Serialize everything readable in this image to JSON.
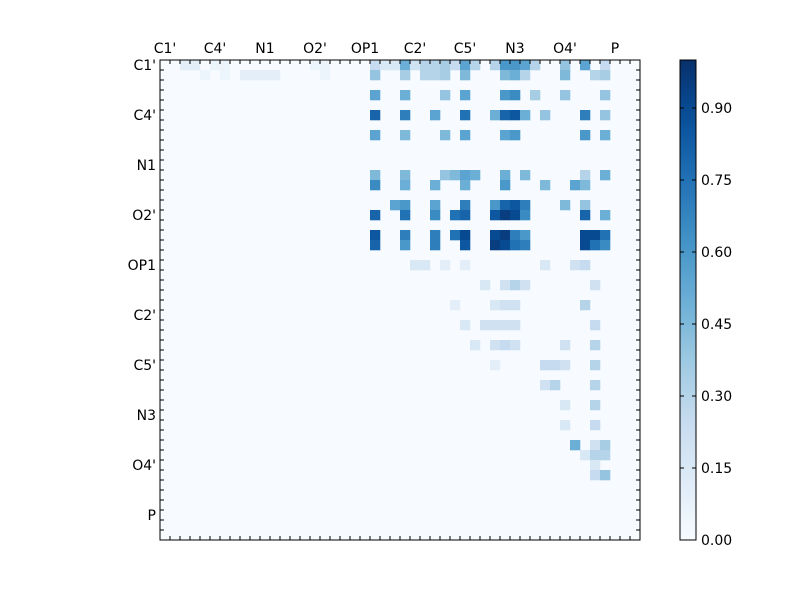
{
  "chart_data": {
    "type": "heatmap",
    "title": "",
    "xlabel": "",
    "ylabel": "",
    "n": 48,
    "tick_labels": [
      "C1'",
      "C4'",
      "N1",
      "O2'",
      "OP1",
      "C2'",
      "C5'",
      "N3",
      "O4'",
      "P"
    ],
    "tick_positions": [
      0,
      5,
      10,
      15,
      20,
      25,
      30,
      35,
      40,
      45
    ],
    "x_axis_position": "top",
    "colormap": "Blues",
    "colorbar": {
      "min": 0.0,
      "max": 1.0,
      "tick_values": [
        0.0,
        0.15,
        0.3,
        0.45,
        0.6,
        0.75,
        0.9
      ],
      "tick_labels": [
        "0.00",
        "0.15",
        "0.30",
        "0.45",
        "0.60",
        "0.75",
        "0.90"
      ]
    },
    "matrix_structure": "upper-triangular",
    "values": [
      {
        "r": 0,
        "c": 2,
        "v": 0.1
      },
      {
        "r": 0,
        "c": 3,
        "v": 0.1
      },
      {
        "r": 0,
        "c": 5,
        "v": 0.05
      },
      {
        "r": 0,
        "c": 6,
        "v": 0.05
      },
      {
        "r": 0,
        "c": 15,
        "v": 0.05
      },
      {
        "r": 0,
        "c": 16,
        "v": 0.05
      },
      {
        "r": 0,
        "c": 21,
        "v": 0.25
      },
      {
        "r": 0,
        "c": 22,
        "v": 0.15
      },
      {
        "r": 0,
        "c": 23,
        "v": 0.15
      },
      {
        "r": 0,
        "c": 24,
        "v": 0.5
      },
      {
        "r": 0,
        "c": 25,
        "v": 0.2
      },
      {
        "r": 0,
        "c": 26,
        "v": 0.3
      },
      {
        "r": 0,
        "c": 27,
        "v": 0.3
      },
      {
        "r": 0,
        "c": 28,
        "v": 0.35
      },
      {
        "r": 0,
        "c": 29,
        "v": 0.25
      },
      {
        "r": 0,
        "c": 30,
        "v": 0.55
      },
      {
        "r": 0,
        "c": 31,
        "v": 0.3
      },
      {
        "r": 0,
        "c": 33,
        "v": 0.3
      },
      {
        "r": 0,
        "c": 34,
        "v": 0.6
      },
      {
        "r": 0,
        "c": 35,
        "v": 0.6
      },
      {
        "r": 0,
        "c": 36,
        "v": 0.55
      },
      {
        "r": 0,
        "c": 37,
        "v": 0.3
      },
      {
        "r": 0,
        "c": 40,
        "v": 0.4
      },
      {
        "r": 0,
        "c": 42,
        "v": 0.55
      },
      {
        "r": 0,
        "c": 44,
        "v": 0.25
      },
      {
        "r": 1,
        "c": 4,
        "v": 0.05
      },
      {
        "r": 1,
        "c": 6,
        "v": 0.05
      },
      {
        "r": 1,
        "c": 8,
        "v": 0.1
      },
      {
        "r": 1,
        "c": 9,
        "v": 0.1
      },
      {
        "r": 1,
        "c": 10,
        "v": 0.1
      },
      {
        "r": 1,
        "c": 11,
        "v": 0.1
      },
      {
        "r": 1,
        "c": 16,
        "v": 0.05
      },
      {
        "r": 1,
        "c": 21,
        "v": 0.4
      },
      {
        "r": 1,
        "c": 24,
        "v": 0.35
      },
      {
        "r": 1,
        "c": 26,
        "v": 0.3
      },
      {
        "r": 1,
        "c": 27,
        "v": 0.3
      },
      {
        "r": 1,
        "c": 28,
        "v": 0.35
      },
      {
        "r": 1,
        "c": 30,
        "v": 0.45
      },
      {
        "r": 1,
        "c": 34,
        "v": 0.45
      },
      {
        "r": 1,
        "c": 35,
        "v": 0.5
      },
      {
        "r": 1,
        "c": 36,
        "v": 0.3
      },
      {
        "r": 1,
        "c": 40,
        "v": 0.45
      },
      {
        "r": 1,
        "c": 43,
        "v": 0.3
      },
      {
        "r": 1,
        "c": 44,
        "v": 0.35
      },
      {
        "r": 3,
        "c": 21,
        "v": 0.55
      },
      {
        "r": 3,
        "c": 24,
        "v": 0.5
      },
      {
        "r": 3,
        "c": 28,
        "v": 0.4
      },
      {
        "r": 3,
        "c": 30,
        "v": 0.55
      },
      {
        "r": 3,
        "c": 34,
        "v": 0.6
      },
      {
        "r": 3,
        "c": 35,
        "v": 0.65
      },
      {
        "r": 3,
        "c": 37,
        "v": 0.35
      },
      {
        "r": 3,
        "c": 40,
        "v": 0.4
      },
      {
        "r": 3,
        "c": 44,
        "v": 0.4
      },
      {
        "r": 5,
        "c": 21,
        "v": 0.8
      },
      {
        "r": 5,
        "c": 24,
        "v": 0.7
      },
      {
        "r": 5,
        "c": 27,
        "v": 0.55
      },
      {
        "r": 5,
        "c": 30,
        "v": 0.75
      },
      {
        "r": 5,
        "c": 33,
        "v": 0.5
      },
      {
        "r": 5,
        "c": 34,
        "v": 0.8
      },
      {
        "r": 5,
        "c": 35,
        "v": 0.85
      },
      {
        "r": 5,
        "c": 36,
        "v": 0.5
      },
      {
        "r": 5,
        "c": 38,
        "v": 0.4
      },
      {
        "r": 5,
        "c": 42,
        "v": 0.7
      },
      {
        "r": 5,
        "c": 44,
        "v": 0.4
      },
      {
        "r": 7,
        "c": 21,
        "v": 0.55
      },
      {
        "r": 7,
        "c": 24,
        "v": 0.45
      },
      {
        "r": 7,
        "c": 28,
        "v": 0.45
      },
      {
        "r": 7,
        "c": 30,
        "v": 0.55
      },
      {
        "r": 7,
        "c": 34,
        "v": 0.55
      },
      {
        "r": 7,
        "c": 35,
        "v": 0.6
      },
      {
        "r": 7,
        "c": 42,
        "v": 0.6
      },
      {
        "r": 7,
        "c": 44,
        "v": 0.5
      },
      {
        "r": 11,
        "c": 21,
        "v": 0.45
      },
      {
        "r": 11,
        "c": 24,
        "v": 0.45
      },
      {
        "r": 11,
        "c": 28,
        "v": 0.4
      },
      {
        "r": 11,
        "c": 29,
        "v": 0.45
      },
      {
        "r": 11,
        "c": 30,
        "v": 0.55
      },
      {
        "r": 11,
        "c": 31,
        "v": 0.5
      },
      {
        "r": 11,
        "c": 34,
        "v": 0.5
      },
      {
        "r": 11,
        "c": 36,
        "v": 0.45
      },
      {
        "r": 11,
        "c": 42,
        "v": 0.3
      },
      {
        "r": 11,
        "c": 44,
        "v": 0.5
      },
      {
        "r": 12,
        "c": 21,
        "v": 0.65
      },
      {
        "r": 12,
        "c": 24,
        "v": 0.5
      },
      {
        "r": 12,
        "c": 27,
        "v": 0.5
      },
      {
        "r": 12,
        "c": 30,
        "v": 0.5
      },
      {
        "r": 12,
        "c": 34,
        "v": 0.6
      },
      {
        "r": 12,
        "c": 38,
        "v": 0.45
      },
      {
        "r": 12,
        "c": 41,
        "v": 0.55
      },
      {
        "r": 12,
        "c": 42,
        "v": 0.45
      },
      {
        "r": 14,
        "c": 23,
        "v": 0.55
      },
      {
        "r": 14,
        "c": 24,
        "v": 0.6
      },
      {
        "r": 14,
        "c": 27,
        "v": 0.55
      },
      {
        "r": 14,
        "c": 30,
        "v": 0.7
      },
      {
        "r": 14,
        "c": 33,
        "v": 0.6
      },
      {
        "r": 14,
        "c": 34,
        "v": 0.8
      },
      {
        "r": 14,
        "c": 35,
        "v": 0.85
      },
      {
        "r": 14,
        "c": 36,
        "v": 0.7
      },
      {
        "r": 14,
        "c": 40,
        "v": 0.45
      },
      {
        "r": 14,
        "c": 42,
        "v": 0.4
      },
      {
        "r": 15,
        "c": 21,
        "v": 0.8
      },
      {
        "r": 15,
        "c": 24,
        "v": 0.75
      },
      {
        "r": 15,
        "c": 27,
        "v": 0.65
      },
      {
        "r": 15,
        "c": 29,
        "v": 0.75
      },
      {
        "r": 15,
        "c": 30,
        "v": 0.8
      },
      {
        "r": 15,
        "c": 33,
        "v": 0.85
      },
      {
        "r": 15,
        "c": 34,
        "v": 0.95
      },
      {
        "r": 15,
        "c": 35,
        "v": 0.9
      },
      {
        "r": 15,
        "c": 36,
        "v": 0.65
      },
      {
        "r": 15,
        "c": 42,
        "v": 0.8
      },
      {
        "r": 15,
        "c": 44,
        "v": 0.5
      },
      {
        "r": 17,
        "c": 21,
        "v": 0.85
      },
      {
        "r": 17,
        "c": 24,
        "v": 0.7
      },
      {
        "r": 17,
        "c": 27,
        "v": 0.7
      },
      {
        "r": 17,
        "c": 29,
        "v": 0.75
      },
      {
        "r": 17,
        "c": 30,
        "v": 0.9
      },
      {
        "r": 17,
        "c": 33,
        "v": 0.9
      },
      {
        "r": 17,
        "c": 34,
        "v": 0.95
      },
      {
        "r": 17,
        "c": 35,
        "v": 0.7
      },
      {
        "r": 17,
        "c": 36,
        "v": 0.6
      },
      {
        "r": 17,
        "c": 42,
        "v": 0.9
      },
      {
        "r": 17,
        "c": 43,
        "v": 0.9
      },
      {
        "r": 17,
        "c": 44,
        "v": 0.75
      },
      {
        "r": 18,
        "c": 21,
        "v": 0.8
      },
      {
        "r": 18,
        "c": 24,
        "v": 0.6
      },
      {
        "r": 18,
        "c": 27,
        "v": 0.7
      },
      {
        "r": 18,
        "c": 30,
        "v": 0.85
      },
      {
        "r": 18,
        "c": 33,
        "v": 0.95
      },
      {
        "r": 18,
        "c": 34,
        "v": 0.9
      },
      {
        "r": 18,
        "c": 35,
        "v": 0.75
      },
      {
        "r": 18,
        "c": 36,
        "v": 0.7
      },
      {
        "r": 18,
        "c": 42,
        "v": 0.9
      },
      {
        "r": 18,
        "c": 43,
        "v": 0.75
      },
      {
        "r": 18,
        "c": 44,
        "v": 0.65
      },
      {
        "r": 20,
        "c": 25,
        "v": 0.15
      },
      {
        "r": 20,
        "c": 26,
        "v": 0.15
      },
      {
        "r": 20,
        "c": 28,
        "v": 0.1
      },
      {
        "r": 20,
        "c": 30,
        "v": 0.1
      },
      {
        "r": 20,
        "c": 38,
        "v": 0.15
      },
      {
        "r": 20,
        "c": 41,
        "v": 0.2
      },
      {
        "r": 20,
        "c": 42,
        "v": 0.25
      },
      {
        "r": 22,
        "c": 32,
        "v": 0.15
      },
      {
        "r": 22,
        "c": 34,
        "v": 0.2
      },
      {
        "r": 22,
        "c": 35,
        "v": 0.3
      },
      {
        "r": 22,
        "c": 36,
        "v": 0.2
      },
      {
        "r": 22,
        "c": 43,
        "v": 0.2
      },
      {
        "r": 24,
        "c": 29,
        "v": 0.1
      },
      {
        "r": 24,
        "c": 33,
        "v": 0.15
      },
      {
        "r": 24,
        "c": 34,
        "v": 0.2
      },
      {
        "r": 24,
        "c": 35,
        "v": 0.2
      },
      {
        "r": 24,
        "c": 42,
        "v": 0.3
      },
      {
        "r": 26,
        "c": 30,
        "v": 0.15
      },
      {
        "r": 26,
        "c": 32,
        "v": 0.2
      },
      {
        "r": 26,
        "c": 33,
        "v": 0.2
      },
      {
        "r": 26,
        "c": 34,
        "v": 0.2
      },
      {
        "r": 26,
        "c": 35,
        "v": 0.2
      },
      {
        "r": 26,
        "c": 43,
        "v": 0.25
      },
      {
        "r": 28,
        "c": 31,
        "v": 0.15
      },
      {
        "r": 28,
        "c": 33,
        "v": 0.2
      },
      {
        "r": 28,
        "c": 34,
        "v": 0.25
      },
      {
        "r": 28,
        "c": 35,
        "v": 0.2
      },
      {
        "r": 28,
        "c": 40,
        "v": 0.2
      },
      {
        "r": 28,
        "c": 43,
        "v": 0.3
      },
      {
        "r": 30,
        "c": 33,
        "v": 0.1
      },
      {
        "r": 30,
        "c": 38,
        "v": 0.25
      },
      {
        "r": 30,
        "c": 39,
        "v": 0.25
      },
      {
        "r": 30,
        "c": 40,
        "v": 0.2
      },
      {
        "r": 30,
        "c": 43,
        "v": 0.3
      },
      {
        "r": 32,
        "c": 38,
        "v": 0.2
      },
      {
        "r": 32,
        "c": 39,
        "v": 0.3
      },
      {
        "r": 32,
        "c": 43,
        "v": 0.3
      },
      {
        "r": 34,
        "c": 40,
        "v": 0.15
      },
      {
        "r": 34,
        "c": 43,
        "v": 0.3
      },
      {
        "r": 36,
        "c": 40,
        "v": 0.15
      },
      {
        "r": 36,
        "c": 43,
        "v": 0.25
      },
      {
        "r": 38,
        "c": 41,
        "v": 0.5
      },
      {
        "r": 38,
        "c": 43,
        "v": 0.2
      },
      {
        "r": 38,
        "c": 44,
        "v": 0.35
      },
      {
        "r": 39,
        "c": 42,
        "v": 0.15
      },
      {
        "r": 39,
        "c": 43,
        "v": 0.3
      },
      {
        "r": 39,
        "c": 44,
        "v": 0.3
      },
      {
        "r": 40,
        "c": 43,
        "v": 0.15
      },
      {
        "r": 41,
        "c": 43,
        "v": 0.25
      },
      {
        "r": 41,
        "c": 44,
        "v": 0.4
      }
    ]
  }
}
